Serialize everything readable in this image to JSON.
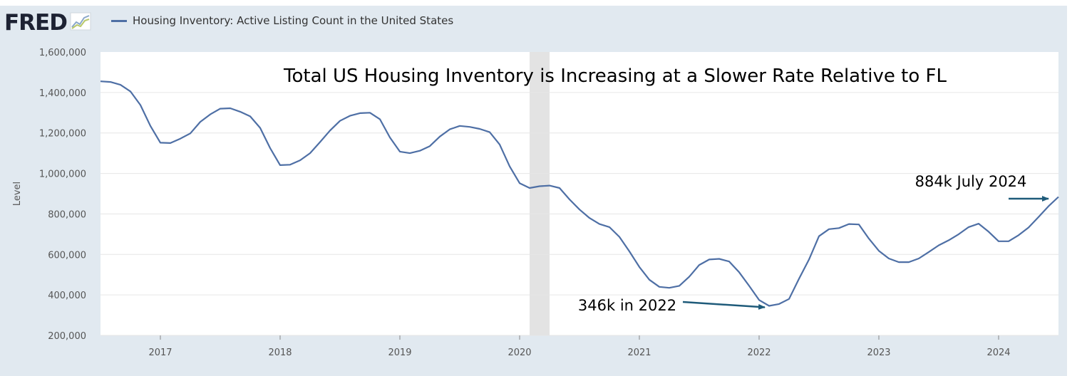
{
  "header": {
    "logo_text": "FRED",
    "logo_icon": "line-chart-icon",
    "legend_label": "Housing Inventory: Active Listing Count in the United States"
  },
  "colors": {
    "series": "#4e6fa5",
    "recession": "#e3e3e3",
    "frame": "#e1e9f0",
    "annotation_arrow": "#1f5b7a"
  },
  "chart_data": {
    "type": "line",
    "title": "Total US Housing Inventory is Increasing at a Slower Rate Relative to FL",
    "ylabel": "Level",
    "xlabel": "",
    "ylim": [
      200000,
      1600000
    ],
    "xlim": [
      "2016-07",
      "2024-07"
    ],
    "yticks": [
      "1,600,000",
      "1,400,000",
      "1,200,000",
      "1,000,000",
      "800,000",
      "600,000",
      "400,000",
      "200,000"
    ],
    "xticks": [
      "2017",
      "2018",
      "2019",
      "2020",
      "2021",
      "2022",
      "2023",
      "2024"
    ],
    "grid": true,
    "recession_shading": [
      "2020-02",
      "2020-04"
    ],
    "series": [
      {
        "name": "Housing Inventory: Active Listing Count in the United States",
        "x": [
          "2016-07",
          "2016-08",
          "2016-09",
          "2016-10",
          "2016-11",
          "2016-12",
          "2017-01",
          "2017-02",
          "2017-03",
          "2017-04",
          "2017-05",
          "2017-06",
          "2017-07",
          "2017-08",
          "2017-09",
          "2017-10",
          "2017-11",
          "2017-12",
          "2018-01",
          "2018-02",
          "2018-03",
          "2018-04",
          "2018-05",
          "2018-06",
          "2018-07",
          "2018-08",
          "2018-09",
          "2018-10",
          "2018-11",
          "2018-12",
          "2019-01",
          "2019-02",
          "2019-03",
          "2019-04",
          "2019-05",
          "2019-06",
          "2019-07",
          "2019-08",
          "2019-09",
          "2019-10",
          "2019-11",
          "2019-12",
          "2020-01",
          "2020-02",
          "2020-03",
          "2020-04",
          "2020-05",
          "2020-06",
          "2020-07",
          "2020-08",
          "2020-09",
          "2020-10",
          "2020-11",
          "2020-12",
          "2021-01",
          "2021-02",
          "2021-03",
          "2021-04",
          "2021-05",
          "2021-06",
          "2021-07",
          "2021-08",
          "2021-09",
          "2021-10",
          "2021-11",
          "2021-12",
          "2022-01",
          "2022-02",
          "2022-03",
          "2022-04",
          "2022-05",
          "2022-06",
          "2022-07",
          "2022-08",
          "2022-09",
          "2022-10",
          "2022-11",
          "2022-12",
          "2023-01",
          "2023-02",
          "2023-03",
          "2023-04",
          "2023-05",
          "2023-06",
          "2023-07",
          "2023-08",
          "2023-09",
          "2023-10",
          "2023-11",
          "2023-12",
          "2024-01",
          "2024-02",
          "2024-03",
          "2024-04",
          "2024-05",
          "2024-06",
          "2024-07"
        ],
        "values": [
          1455000,
          1452000,
          1438000,
          1405000,
          1338000,
          1235000,
          1152000,
          1150000,
          1172000,
          1198000,
          1255000,
          1292000,
          1320000,
          1322000,
          1305000,
          1282000,
          1225000,
          1125000,
          1041000,
          1043000,
          1065000,
          1100000,
          1155000,
          1212000,
          1260000,
          1285000,
          1298000,
          1300000,
          1268000,
          1178000,
          1108000,
          1100000,
          1112000,
          1135000,
          1182000,
          1218000,
          1235000,
          1230000,
          1220000,
          1204000,
          1143000,
          1035000,
          952000,
          928000,
          937000,
          940000,
          928000,
          872000,
          822000,
          780000,
          750000,
          735000,
          687000,
          615000,
          538000,
          475000,
          440000,
          435000,
          445000,
          490000,
          548000,
          575000,
          578000,
          565000,
          512000,
          445000,
          375000,
          346000,
          355000,
          380000,
          480000,
          575000,
          690000,
          725000,
          730000,
          750000,
          748000,
          678000,
          618000,
          580000,
          562000,
          562000,
          580000,
          612000,
          645000,
          670000,
          700000,
          735000,
          752000,
          712000,
          665000,
          665000,
          695000,
          733000,
          785000,
          838000,
          884000
        ]
      }
    ],
    "annotations": [
      {
        "text": "346k in 2022",
        "target_x": "2022-02",
        "target_y": 346000
      },
      {
        "text": "884k July 2024",
        "target_x": "2024-07",
        "target_y": 884000
      }
    ]
  }
}
